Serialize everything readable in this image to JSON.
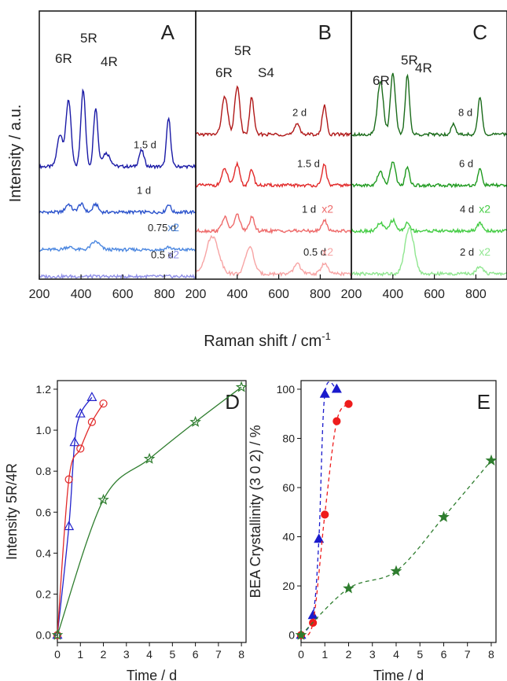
{
  "chart_data": [
    {
      "type": "line",
      "panel_letter": "A",
      "xlim": [
        200,
        950
      ],
      "xticks": [
        "200",
        "400",
        "600",
        "800"
      ],
      "peak_labels": [
        "6R",
        "5R",
        "4R"
      ],
      "series": [
        {
          "name": "1.5 d",
          "color": "#1a1aa6",
          "label": "1.5 d",
          "factor": "",
          "baseline": 0.42,
          "peaks": [
            [
              340,
              0.25,
              12
            ],
            [
              410,
              0.29,
              11
            ],
            [
              470,
              0.22,
              10
            ],
            [
              300,
              0.12,
              14
            ],
            [
              520,
              0.05,
              20
            ],
            [
              690,
              0.06,
              12
            ],
            [
              820,
              0.18,
              10
            ]
          ]
        },
        {
          "name": "1 d",
          "color": "#2a52cc",
          "label": "1 d",
          "factor": "",
          "baseline": 0.25,
          "peaks": [
            [
              340,
              0.03,
              14
            ],
            [
              400,
              0.03,
              14
            ],
            [
              470,
              0.03,
              12
            ],
            [
              820,
              0.03,
              10
            ]
          ]
        },
        {
          "name": "0.75 d",
          "color": "#4a86e0",
          "label": "0.75 d",
          "factor": "x2",
          "baseline": 0.11,
          "peaks": [
            [
              340,
              0.01,
              20
            ],
            [
              470,
              0.03,
              20
            ],
            [
              820,
              0.01,
              12
            ]
          ]
        },
        {
          "name": "0.5 d",
          "color": "#8f8fe6",
          "label": "0.5 d",
          "factor": "x2",
          "baseline": 0.01,
          "peaks": []
        }
      ]
    },
    {
      "type": "line",
      "panel_letter": "B",
      "xlim": [
        200,
        950
      ],
      "xticks": [
        "200",
        "400",
        "600",
        "800"
      ],
      "peak_labels": [
        "6R",
        "5R",
        "S4"
      ],
      "series": [
        {
          "name": "2 d",
          "color": "#b01818",
          "label": "2 d",
          "factor": "",
          "baseline": 0.54,
          "peaks": [
            [
              340,
              0.14,
              14
            ],
            [
              400,
              0.18,
              12
            ],
            [
              470,
              0.14,
              10
            ],
            [
              690,
              0.04,
              12
            ],
            [
              820,
              0.11,
              10
            ]
          ]
        },
        {
          "name": "1.5 d",
          "color": "#e22a2a",
          "label": "1.5 d",
          "factor": "",
          "baseline": 0.35,
          "peaks": [
            [
              340,
              0.06,
              14
            ],
            [
              400,
              0.08,
              12
            ],
            [
              470,
              0.06,
              10
            ],
            [
              820,
              0.08,
              10
            ]
          ]
        },
        {
          "name": "1 d",
          "color": "#ee6a6a",
          "label": "1 d",
          "factor": "x2",
          "baseline": 0.18,
          "peaks": [
            [
              340,
              0.05,
              14
            ],
            [
              400,
              0.06,
              14
            ],
            [
              470,
              0.05,
              12
            ],
            [
              820,
              0.04,
              12
            ]
          ]
        },
        {
          "name": "0.5 d",
          "color": "#f7a4a4",
          "label": "0.5 d",
          "factor": "x2",
          "baseline": 0.02,
          "peaks": [
            [
              280,
              0.14,
              30
            ],
            [
              460,
              0.1,
              20
            ],
            [
              690,
              0.04,
              15
            ],
            [
              820,
              0.04,
              15
            ]
          ]
        }
      ]
    },
    {
      "type": "line",
      "panel_letter": "C",
      "xlim": [
        200,
        950
      ],
      "xticks": [
        "200",
        "400",
        "600",
        "800"
      ],
      "peak_labels": [
        "6R",
        "5R",
        "4R"
      ],
      "series": [
        {
          "name": "8 d",
          "color": "#1a6b1a",
          "label": "8 d",
          "factor": "",
          "baseline": 0.54,
          "peaks": [
            [
              340,
              0.2,
              14
            ],
            [
              400,
              0.23,
              12
            ],
            [
              470,
              0.22,
              10
            ],
            [
              690,
              0.04,
              10
            ],
            [
              820,
              0.14,
              10
            ]
          ]
        },
        {
          "name": "6 d",
          "color": "#1f9a1f",
          "label": "6 d",
          "factor": "",
          "baseline": 0.35,
          "peaks": [
            [
              340,
              0.05,
              14
            ],
            [
              400,
              0.09,
              12
            ],
            [
              470,
              0.07,
              10
            ],
            [
              820,
              0.06,
              10
            ]
          ]
        },
        {
          "name": "4 d",
          "color": "#44cc44",
          "label": "4 d",
          "factor": "x2",
          "baseline": 0.18,
          "peaks": [
            [
              340,
              0.03,
              14
            ],
            [
              400,
              0.04,
              14
            ],
            [
              470,
              0.03,
              12
            ],
            [
              820,
              0.03,
              12
            ]
          ]
        },
        {
          "name": "2 d",
          "color": "#8fe68f",
          "label": "2 d",
          "factor": "x2",
          "baseline": 0.02,
          "peaks": [
            [
              480,
              0.17,
              22
            ],
            [
              820,
              0.03,
              15
            ]
          ]
        }
      ]
    },
    {
      "type": "scatter",
      "panel_letter": "D",
      "xlabel": "Time / d",
      "ylabel": "Intensity 5R/4R",
      "xlim": [
        0,
        8.2
      ],
      "ylim": [
        0,
        1.2
      ],
      "xticks": [
        "0",
        "1",
        "2",
        "3",
        "4",
        "5",
        "6",
        "7",
        "8"
      ],
      "yticks": [
        "0.0",
        "0.2",
        "0.4",
        "0.6",
        "0.8",
        "1.0",
        "1.2"
      ],
      "series": [
        {
          "name": "blue",
          "color": "#2222cc",
          "marker": "triangle",
          "x": [
            0,
            0.5,
            0.75,
            1.0,
            1.5
          ],
          "y": [
            0.0,
            0.53,
            0.94,
            1.08,
            1.16
          ]
        },
        {
          "name": "red",
          "color": "#e22a2a",
          "marker": "circle",
          "x": [
            0,
            0.5,
            1.0,
            1.5,
            2.0
          ],
          "y": [
            0.0,
            0.76,
            0.91,
            1.04,
            1.13
          ]
        },
        {
          "name": "green",
          "color": "#2e7d2e",
          "marker": "star",
          "x": [
            0,
            2,
            4,
            6,
            8
          ],
          "y": [
            0.0,
            0.66,
            0.86,
            1.04,
            1.21
          ]
        }
      ]
    },
    {
      "type": "scatter",
      "panel_letter": "E",
      "xlabel": "Time / d",
      "ylabel": "BEA Crystallinity (3 0 2) / %",
      "xlim": [
        0,
        8.2
      ],
      "ylim": [
        0,
        100
      ],
      "xticks": [
        "0",
        "1",
        "2",
        "3",
        "4",
        "5",
        "6",
        "7",
        "8"
      ],
      "yticks": [
        "0",
        "20",
        "40",
        "60",
        "80",
        "100"
      ],
      "series": [
        {
          "name": "blue",
          "color": "#1a1acc",
          "marker": "triangle-filled",
          "x": [
            0,
            0.5,
            0.75,
            1.0,
            1.5
          ],
          "y": [
            0,
            8,
            39,
            98,
            100
          ]
        },
        {
          "name": "red",
          "color": "#ee1c1c",
          "marker": "circle-filled",
          "x": [
            0,
            0.5,
            1.0,
            1.5,
            2.0
          ],
          "y": [
            0,
            5,
            49,
            87,
            94
          ]
        },
        {
          "name": "green",
          "color": "#2e7d2e",
          "marker": "star-filled",
          "x": [
            0,
            2,
            4,
            6,
            8
          ],
          "y": [
            0,
            19,
            26,
            48,
            71
          ]
        }
      ]
    }
  ],
  "raman": {
    "ylabel": "Intensity / a.u.",
    "xlabel": "Raman shift / cm",
    "xlabel_sup": "-1"
  }
}
